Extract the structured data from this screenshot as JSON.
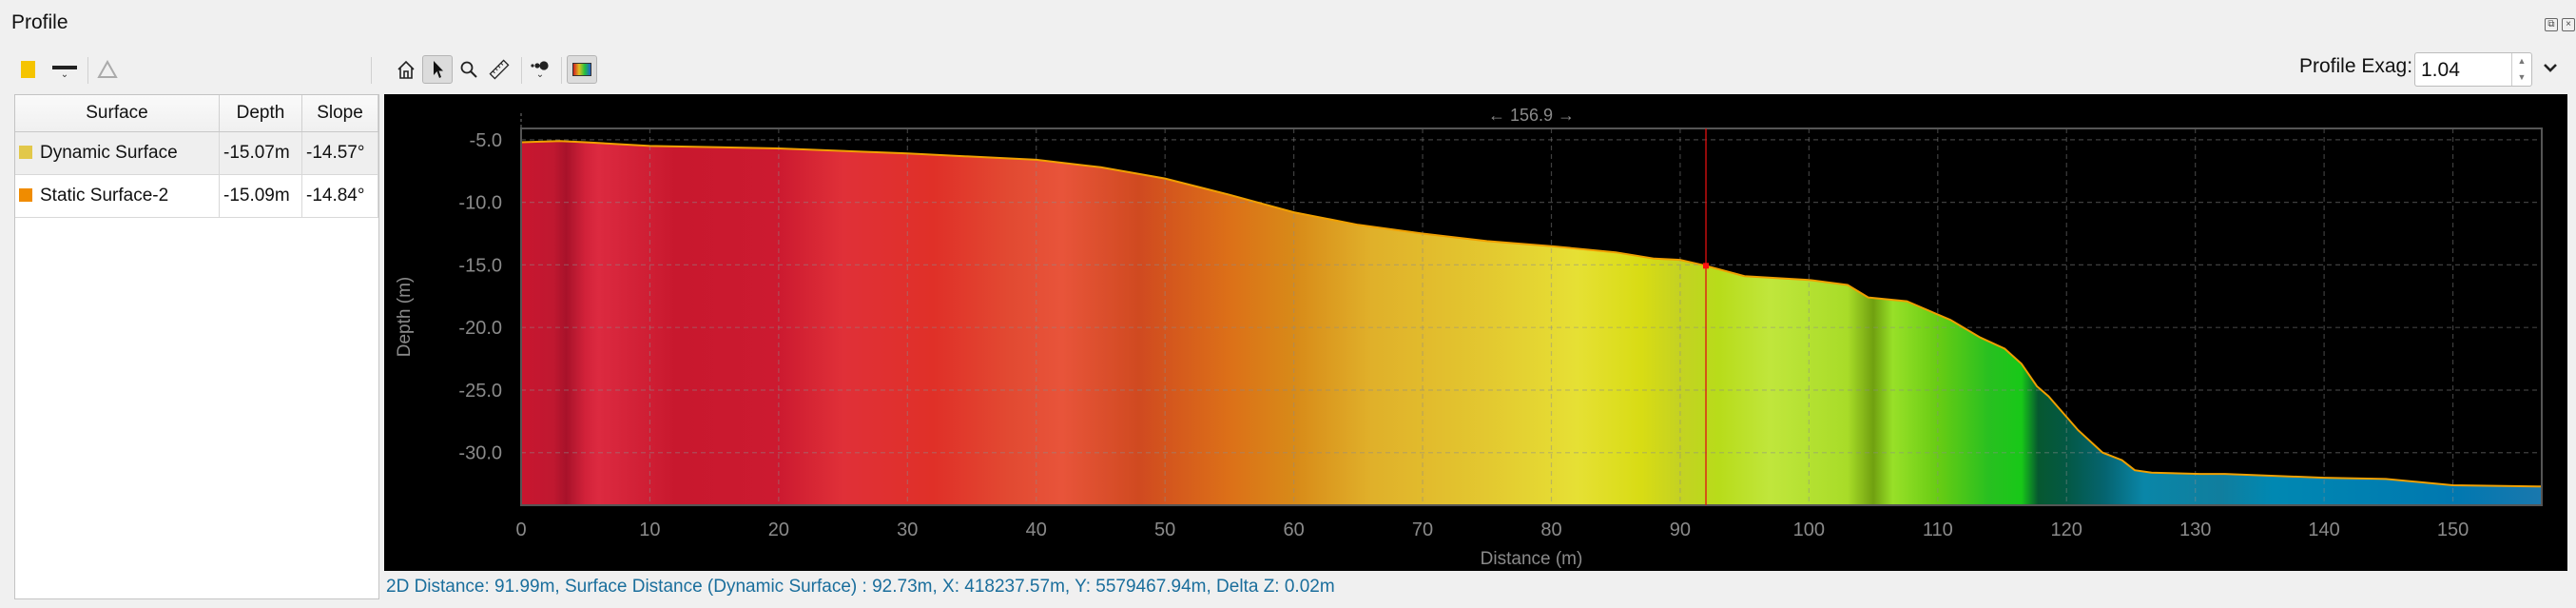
{
  "panel": {
    "title": "Profile"
  },
  "window_icons": [
    "restore-icon",
    "close-icon"
  ],
  "toolbar_left": {
    "color_swatch": "#f5c400",
    "items": [
      "color-swatch-icon",
      "line-style-icon",
      "triangle-icon"
    ]
  },
  "toolbar_chart": {
    "items": [
      "home-icon",
      "pointer-icon",
      "zoom-icon",
      "ruler-icon",
      "points-icon",
      "colormap-icon"
    ],
    "active": "pointer-icon"
  },
  "exaggeration": {
    "label": "Profile Exag:",
    "value": "1.04"
  },
  "table": {
    "headers": [
      "Surface",
      "Depth",
      "Slope"
    ],
    "rows": [
      {
        "color": "#e2c84a",
        "surface": "Dynamic Surface",
        "depth": "-15.07m",
        "slope": "-14.57°"
      },
      {
        "color": "#f08c00",
        "surface": "Static Surface-2",
        "depth": "-15.09m",
        "slope": "-14.84°"
      }
    ]
  },
  "status": "2D Distance: 91.99m, Surface Distance (Dynamic Surface) : 92.73m, X: 418237.57m, Y: 5579467.94m, Delta Z: 0.02m",
  "chart_data": {
    "type": "area",
    "xlabel": "Distance (m)",
    "ylabel": "Depth (m)",
    "span_label": "← 156.9 →",
    "xlim": [
      0,
      156.9
    ],
    "ylim": [
      -34.2,
      -4.1
    ],
    "xticks": [
      "0",
      "10",
      "20",
      "30",
      "40",
      "50",
      "60",
      "70",
      "80",
      "90",
      "100",
      "110",
      "120",
      "130",
      "140",
      "150"
    ],
    "yticks": [
      "-5.0",
      "-10.0",
      "-15.0",
      "-20.0",
      "-25.0",
      "-30.0"
    ],
    "grid": true,
    "line_color": "#f0a000",
    "cursor": {
      "x": 92,
      "y": -15.07,
      "color": "#e01010"
    },
    "series": [
      {
        "x": [
          0,
          3,
          5,
          10,
          20,
          30,
          40,
          45,
          50,
          55,
          60,
          65,
          70,
          75,
          80,
          85,
          88,
          90,
          92,
          95,
          100,
          103,
          104.6,
          107.6,
          111,
          113.3,
          115.2,
          116.5,
          117.7,
          118.6,
          120.9,
          122.8,
          124.3,
          125.3,
          126.6,
          130.4,
          132.3,
          140,
          144.8,
          150,
          156.9
        ],
        "y": [
          -5.2,
          -5.1,
          -5.2,
          -5.5,
          -5.7,
          -6.1,
          -6.6,
          -7.2,
          -8.1,
          -9.4,
          -10.8,
          -11.8,
          -12.5,
          -13.1,
          -13.5,
          -14.0,
          -14.5,
          -14.6,
          -15.07,
          -15.9,
          -16.2,
          -16.6,
          -17.6,
          -17.9,
          -19.4,
          -20.8,
          -21.7,
          -22.9,
          -24.7,
          -25.5,
          -28.2,
          -30.0,
          -30.6,
          -31.4,
          -31.6,
          -31.7,
          -31.7,
          -32.0,
          -32.1,
          -32.6,
          -32.7
        ]
      }
    ],
    "colormap": [
      {
        "x": 0,
        "c": "#c8162f"
      },
      {
        "x": 2.5,
        "c": "#c01830"
      },
      {
        "x": 3.5,
        "c": "#a8122a"
      },
      {
        "x": 5,
        "c": "#d2223a"
      },
      {
        "x": 6,
        "c": "#dc2a40"
      },
      {
        "x": 12,
        "c": "#c8182e"
      },
      {
        "x": 20,
        "c": "#cc1a30"
      },
      {
        "x": 25,
        "c": "#e03038"
      },
      {
        "x": 32,
        "c": "#e03028"
      },
      {
        "x": 38,
        "c": "#e24a32"
      },
      {
        "x": 42,
        "c": "#e8543a"
      },
      {
        "x": 48,
        "c": "#d04a20"
      },
      {
        "x": 55,
        "c": "#dc7018"
      },
      {
        "x": 60,
        "c": "#d88a18"
      },
      {
        "x": 66,
        "c": "#e0b02a"
      },
      {
        "x": 75,
        "c": "#e3c830"
      },
      {
        "x": 82,
        "c": "#e6e034"
      },
      {
        "x": 87,
        "c": "#d8dc14"
      },
      {
        "x": 90,
        "c": "#c4d222"
      },
      {
        "x": 93,
        "c": "#b8dc1a"
      },
      {
        "x": 97,
        "c": "#c0e63c"
      },
      {
        "x": 103,
        "c": "#a8dc28"
      },
      {
        "x": 105,
        "c": "#70a010"
      },
      {
        "x": 106.5,
        "c": "#98e028"
      },
      {
        "x": 110,
        "c": "#68cc14"
      },
      {
        "x": 114,
        "c": "#28c020"
      },
      {
        "x": 116.5,
        "c": "#18c818"
      },
      {
        "x": 117.8,
        "c": "#065830"
      },
      {
        "x": 120,
        "c": "#045844"
      },
      {
        "x": 123,
        "c": "#056470"
      },
      {
        "x": 126,
        "c": "#0a86a8"
      },
      {
        "x": 132,
        "c": "#107e9e"
      },
      {
        "x": 136,
        "c": "#0088b2"
      },
      {
        "x": 150,
        "c": "#0078b0"
      },
      {
        "x": 156.9,
        "c": "#1a78ae"
      }
    ]
  }
}
